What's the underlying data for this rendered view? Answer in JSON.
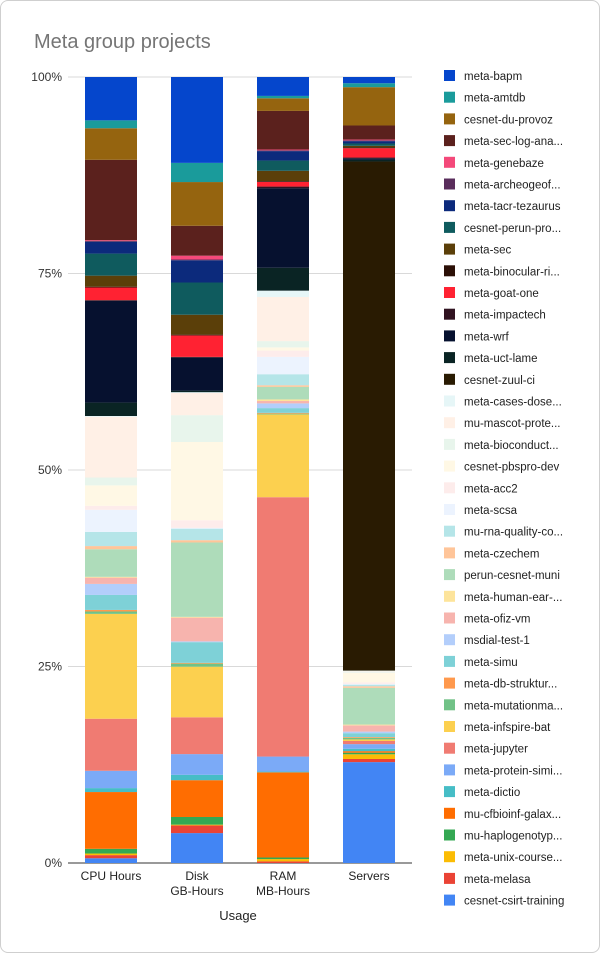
{
  "chart_data": {
    "type": "bar",
    "stacked": "100%",
    "title": "Meta group projects",
    "xlabel": "Usage",
    "ylabel": "",
    "ylim": [
      0,
      100
    ],
    "yticks": [
      "0%",
      "25%",
      "50%",
      "75%",
      "100%"
    ],
    "categories": [
      "CPU Hours",
      "Disk\nGB-Hours",
      "RAM\nMB-Hours",
      "Servers"
    ],
    "legend_position": "right",
    "series": [
      {
        "name": "cesnet-csirt-training",
        "color": "#4285f4",
        "values": [
          0.6,
          3.9,
          0.0,
          12.9
        ]
      },
      {
        "name": "meta-melasa",
        "color": "#ea4335",
        "values": [
          0.4,
          1.0,
          0.2,
          0.4
        ]
      },
      {
        "name": "meta-unix-course...",
        "color": "#fbbc04",
        "values": [
          0.2,
          0.1,
          0.3,
          0.6
        ]
      },
      {
        "name": "mu-haplogenotyp...",
        "color": "#34a853",
        "values": [
          0.6,
          1.0,
          0.2,
          0.2
        ]
      },
      {
        "name": "mu-cfbioinf-galax...",
        "color": "#ff6d01",
        "values": [
          7.2,
          4.8,
          10.8,
          0.2
        ]
      },
      {
        "name": "meta-dictio",
        "color": "#46bdc6",
        "values": [
          0.5,
          0.7,
          0.1,
          0.3
        ]
      },
      {
        "name": "meta-protein-simi...",
        "color": "#7baaf7",
        "values": [
          2.2,
          2.7,
          1.9,
          0.6
        ]
      },
      {
        "name": "meta-jupyter",
        "color": "#f07b72",
        "values": [
          6.6,
          4.8,
          32.9,
          0.4
        ]
      },
      {
        "name": "meta-infspire-bat",
        "color": "#fcd04f",
        "values": [
          13.3,
          6.6,
          10.5,
          0.2
        ]
      },
      {
        "name": "meta-mutationma...",
        "color": "#71c287",
        "values": [
          0.3,
          0.4,
          0.1,
          0.2
        ]
      },
      {
        "name": "meta-db-struktur...",
        "color": "#ff994d",
        "values": [
          0.2,
          0.1,
          0.1,
          0.1
        ]
      },
      {
        "name": "meta-simu",
        "color": "#7ed1d7",
        "values": [
          1.9,
          2.7,
          0.6,
          0.5
        ]
      },
      {
        "name": "msdial-test-1",
        "color": "#b3cefb",
        "values": [
          1.4,
          0.1,
          0.6,
          0.2
        ]
      },
      {
        "name": "meta-ofiz-vm",
        "color": "#f7b4ae",
        "values": [
          0.8,
          3.1,
          0.3,
          0.8
        ]
      },
      {
        "name": "meta-human-ear-...",
        "color": "#fde49b",
        "values": [
          0.1,
          0.1,
          0.2,
          0.1
        ]
      },
      {
        "name": "perun-cesnet-muni",
        "color": "#aedcba",
        "values": [
          3.5,
          9.7,
          1.6,
          4.7
        ]
      },
      {
        "name": "meta-czechem",
        "color": "#ffc599",
        "values": [
          0.4,
          0.3,
          0.2,
          0.2
        ]
      },
      {
        "name": "mu-rna-quality-co...",
        "color": "#b5e5e8",
        "values": [
          1.8,
          1.5,
          1.4,
          0.2
        ]
      },
      {
        "name": "meta-scsa",
        "color": "#ecf3fe",
        "values": [
          2.8,
          0.1,
          2.2,
          0.1
        ]
      },
      {
        "name": "meta-acc2",
        "color": "#fdeceb",
        "values": [
          0.5,
          1.0,
          0.8,
          0.2
        ]
      },
      {
        "name": "cesnet-pbspro-dev",
        "color": "#fff8e5",
        "values": [
          2.6,
          10.2,
          0.4,
          1.2
        ]
      },
      {
        "name": "meta-bioconduct...",
        "color": "#e8f5ec",
        "values": [
          1.0,
          3.5,
          0.8,
          0.1
        ]
      },
      {
        "name": "mu-mascot-prote...",
        "color": "#fff0e6",
        "values": [
          7.7,
          2.9,
          5.6,
          0.1
        ]
      },
      {
        "name": "meta-cases-dose...",
        "color": "#e6f6f7",
        "values": [
          0.1,
          0.1,
          0.8,
          0.1
        ]
      },
      {
        "name": "cesnet-zuul-ci",
        "color": "#291b02",
        "values": [
          0.0,
          0.0,
          0.0,
          65.1
        ]
      },
      {
        "name": "meta-uct-lame",
        "color": "#0a2424",
        "values": [
          1.7,
          0.2,
          2.9,
          0.2
        ]
      },
      {
        "name": "meta-wrf",
        "color": "#06112f",
        "values": [
          12.9,
          4.3,
          10.1,
          0.2
        ]
      },
      {
        "name": "meta-impactech",
        "color": "#311321",
        "values": [
          0.1,
          0.1,
          0.2,
          0.1
        ]
      },
      {
        "name": "meta-goat-one",
        "color": "#ff2232",
        "values": [
          1.6,
          2.8,
          0.6,
          1.2
        ]
      },
      {
        "name": "meta-binocular-ri...",
        "color": "#2b0f06",
        "values": [
          0.1,
          0.1,
          0.1,
          0.1
        ]
      },
      {
        "name": "meta-sec",
        "color": "#5b3f09",
        "values": [
          1.4,
          2.6,
          1.3,
          0.2
        ]
      },
      {
        "name": "cesnet-perun-pro...",
        "color": "#0f5b5e",
        "values": [
          2.8,
          4.2,
          1.3,
          0.3
        ]
      },
      {
        "name": "meta-tacr-tezaurus",
        "color": "#0c2a7c",
        "values": [
          1.5,
          2.9,
          1.2,
          0.3
        ]
      },
      {
        "name": "meta-archeogeof...",
        "color": "#5a2d5c",
        "values": [
          0.1,
          0.1,
          0.1,
          0.1
        ]
      },
      {
        "name": "meta-genebaze",
        "color": "#f4497a",
        "values": [
          0.1,
          0.5,
          0.1,
          0.1
        ]
      },
      {
        "name": "meta-sec-log-ana...",
        "color": "#5b211d",
        "values": [
          10.2,
          3.9,
          4.9,
          1.8
        ]
      },
      {
        "name": "cesnet-du-provoz",
        "color": "#95640f",
        "values": [
          4.0,
          5.7,
          1.6,
          4.9
        ]
      },
      {
        "name": "meta-amtdb",
        "color": "#1a9b9b",
        "values": [
          1.0,
          2.5,
          0.3,
          0.5
        ]
      },
      {
        "name": "meta-bapm",
        "color": "#0546cc",
        "values": [
          5.5,
          11.2,
          2.4,
          0.8
        ]
      }
    ]
  }
}
